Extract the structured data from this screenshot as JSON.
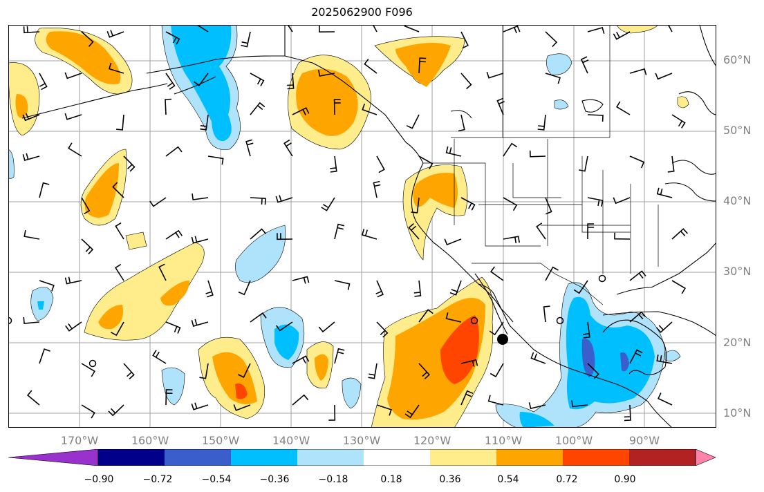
{
  "title": "2025062900 F096",
  "lat_labels": [
    "60°N",
    "50°N",
    "40°N",
    "30°N",
    "20°N",
    "10°N"
  ],
  "lon_labels": [
    "170°W",
    "160°W",
    "150°W",
    "140°W",
    "130°W",
    "120°W",
    "110°W",
    "100°W",
    "90°W"
  ],
  "colorbar": {
    "levels": [
      "−0.90",
      "−0.72",
      "−0.54",
      "−0.36",
      "−0.18",
      "0.18",
      "0.36",
      "0.54",
      "0.72",
      "0.90"
    ],
    "colors": [
      "#9932cc",
      "#00008b",
      "#3a5fcd",
      "#00bfff",
      "#aee3fb",
      "#ffffff",
      "#ffec8b",
      "#ffa500",
      "#ff4500",
      "#b22222",
      "#ff82ab"
    ]
  },
  "colors": {
    "lightblue": "#aee3fb",
    "blue": "#00bfff",
    "darkblue": "#3a5fcd",
    "yellow": "#ffec8b",
    "orange": "#ffa500",
    "red": "#ff4500",
    "grid": "#a0a0a0"
  }
}
